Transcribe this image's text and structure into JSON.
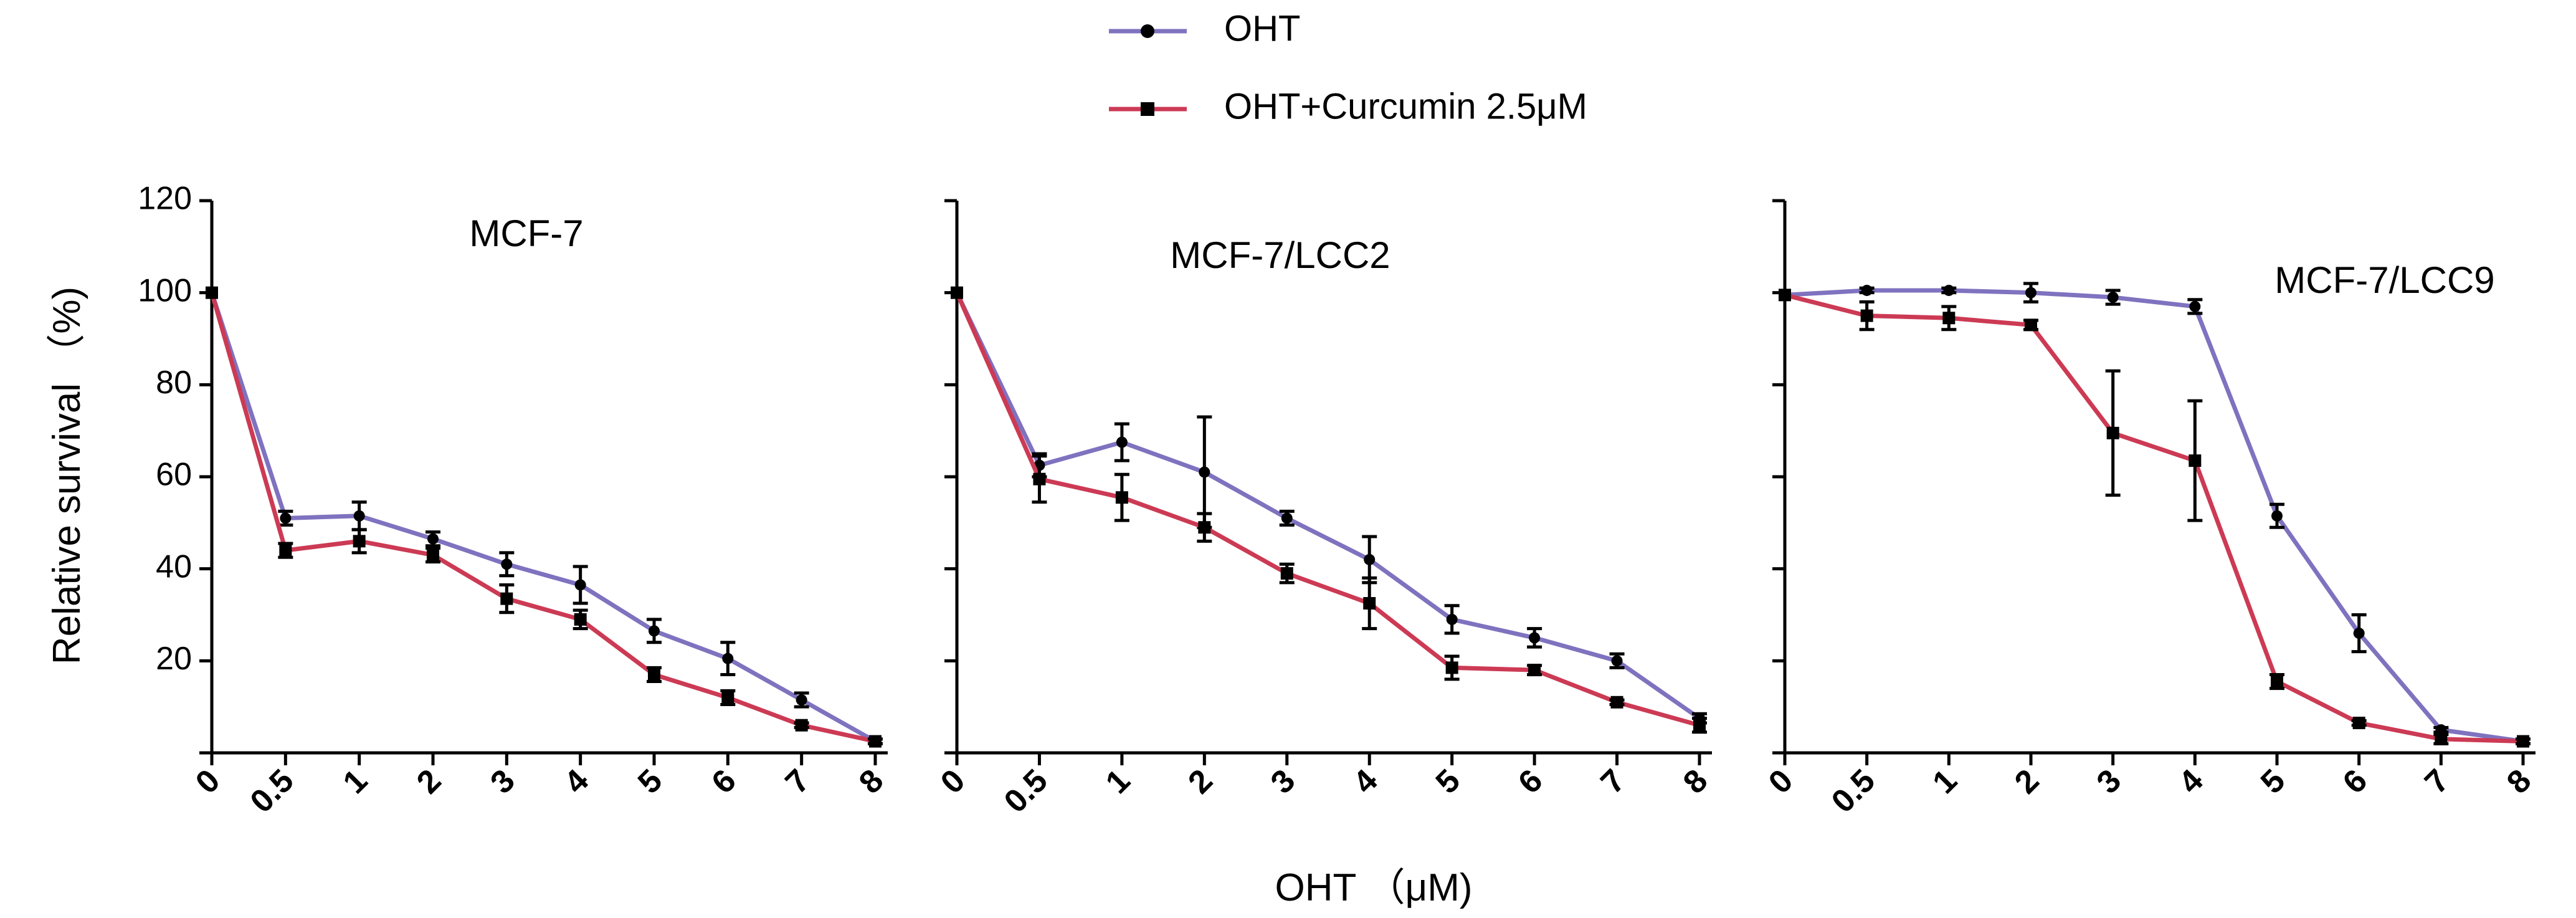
{
  "chart_data": {
    "type": "line",
    "xlabel": "OHT （μM)",
    "ylabel": "Relative survival （%)",
    "categories": [
      "0",
      "0.5",
      "1",
      "2",
      "3",
      "4",
      "5",
      "6",
      "7",
      "8"
    ],
    "ylim": [
      0,
      120
    ],
    "yticks": [
      "20",
      "40",
      "60",
      "80",
      "100",
      "120"
    ],
    "legend_position": "top-center",
    "legend": [
      {
        "label": "OHT",
        "color": "#7f72bf",
        "marker": "circle"
      },
      {
        "label": "OHT+Curcumin 2.5μM",
        "color": "#cc3a54",
        "marker": "square"
      }
    ],
    "panels": [
      {
        "title": "MCF-7",
        "series": [
          {
            "name": "OHT",
            "values": [
              100,
              51,
              51.5,
              46.5,
              41,
              36.5,
              26.5,
              20.5,
              11.5,
              2.5
            ],
            "errors": [
              0,
              1.5,
              3,
              1.5,
              2.5,
              4,
              2.5,
              3.5,
              1.5,
              0.5
            ]
          },
          {
            "name": "OHT+Curcumin 2.5μM",
            "values": [
              100,
              44,
              46,
              43,
              33.5,
              29,
              17,
              12,
              6,
              2.5
            ],
            "errors": [
              0,
              1.5,
              2.5,
              1.5,
              3,
              2,
              1.5,
              1.5,
              0.5,
              0.5
            ]
          }
        ]
      },
      {
        "title": "MCF-7/LCC2",
        "series": [
          {
            "name": "OHT",
            "values": [
              100,
              62.5,
              67.5,
              61,
              51,
              42,
              29,
              25,
              20,
              7.5
            ],
            "errors": [
              0,
              2.5,
              4,
              12,
              1.5,
              5,
              3,
              2,
              1.5,
              1
            ]
          },
          {
            "name": "OHT+Curcumin 2.5μM",
            "values": [
              100,
              59.5,
              55.5,
              49,
              39,
              32.5,
              18.5,
              18,
              11,
              6
            ],
            "errors": [
              0,
              5,
              5,
              3,
              2,
              5.5,
              2.5,
              1,
              0.5,
              1.5
            ]
          }
        ]
      },
      {
        "title": "MCF-7/LCC9",
        "series": [
          {
            "name": "OHT",
            "values": [
              99.5,
              100.5,
              100.5,
              100,
              99,
              97,
              51.5,
              26,
              5,
              2.5
            ],
            "errors": [
              0,
              0.5,
              0.5,
              2,
              1.5,
              1.5,
              2.5,
              4,
              0.5,
              0.5
            ]
          },
          {
            "name": "OHT+Curcumin 2.5μM",
            "values": [
              99.5,
              95,
              94.5,
              93,
              69.5,
              63.5,
              15.5,
              6.5,
              3,
              2.5
            ],
            "errors": [
              0,
              3,
              2.5,
              1,
              13.5,
              13,
              1.5,
              0.5,
              1,
              0.5
            ]
          }
        ]
      }
    ]
  }
}
